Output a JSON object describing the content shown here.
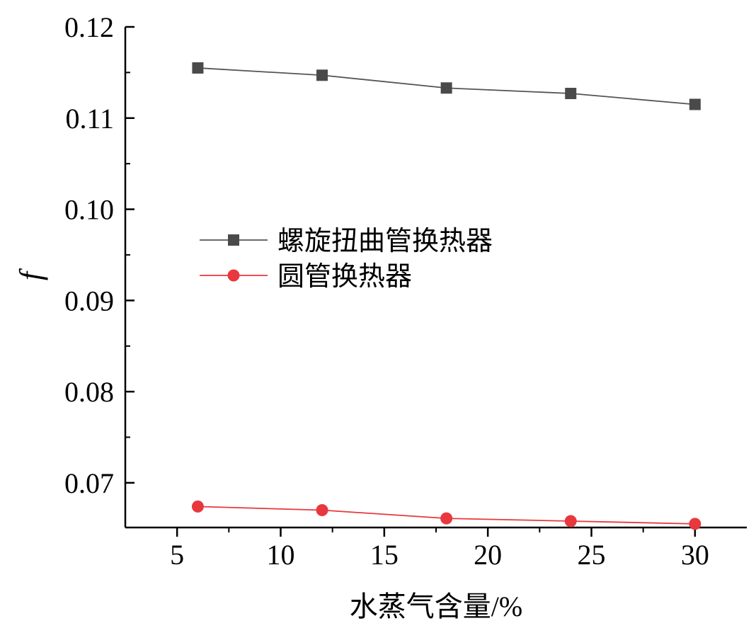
{
  "chart_data": {
    "type": "line",
    "xlabel": "水蒸气含量/%",
    "ylabel": "f",
    "xlim": [
      2.5,
      32.5
    ],
    "ylim": [
      0.0651,
      0.12
    ],
    "x_ticks": [
      5,
      10,
      15,
      20,
      25,
      30
    ],
    "x_tick_labels": [
      "5",
      "10",
      "15",
      "20",
      "25",
      "30"
    ],
    "y_ticks": [
      0.07,
      0.08,
      0.09,
      0.1,
      0.11,
      0.12
    ],
    "y_tick_labels": [
      "0.07",
      "0.08",
      "0.09",
      "0.10",
      "0.11",
      "0.12"
    ],
    "grid": false,
    "legend_position": "center-left",
    "x": [
      6,
      12,
      18,
      24,
      30
    ],
    "series": [
      {
        "name": "螺旋扭曲管换热器",
        "values": [
          0.1155,
          0.1147,
          0.1133,
          0.1127,
          0.1115
        ],
        "color": "#4a4a4a",
        "line_color": "#555555",
        "marker": "square"
      },
      {
        "name": "圆管换热器",
        "values": [
          0.0674,
          0.067,
          0.0661,
          0.0658,
          0.0655
        ],
        "color": "#e8383d",
        "line_color": "#e8383d",
        "marker": "circle"
      }
    ]
  }
}
